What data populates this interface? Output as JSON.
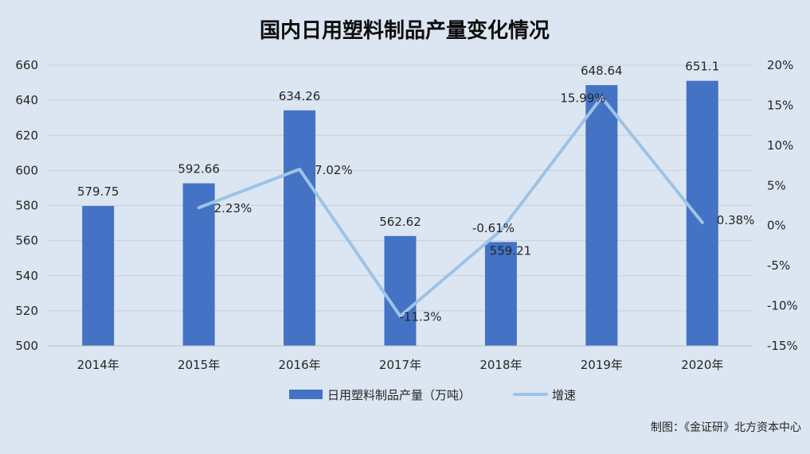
{
  "chart_data": {
    "type": "bar",
    "title": "国内日用塑料制品产量变化情况",
    "categories": [
      "2014年",
      "2015年",
      "2016年",
      "2017年",
      "2018年",
      "2019年",
      "2020年"
    ],
    "series": [
      {
        "name": "日用塑料制品产量（万吨）",
        "type": "bar",
        "axis": "left",
        "values": [
          579.75,
          592.66,
          634.26,
          562.62,
          559.21,
          648.64,
          651.1
        ],
        "labels": [
          "579.75",
          "592.66",
          "634.26",
          "562.62",
          "559.21",
          "648.64",
          "651.1"
        ],
        "color": "#4472c4"
      },
      {
        "name": "增速",
        "type": "line",
        "axis": "right",
        "values": [
          null,
          2.23,
          7.02,
          -11.3,
          -0.61,
          15.99,
          0.38
        ],
        "labels": [
          null,
          "2.23%",
          "7.02%",
          "-11.3%",
          "-0.61%",
          "15.99%",
          "0.38%"
        ],
        "color": "#9dc3e6"
      }
    ],
    "y_left": {
      "ylim": [
        500,
        660
      ],
      "ticks": [
        "500",
        "520",
        "540",
        "560",
        "580",
        "600",
        "620",
        "640",
        "660"
      ],
      "tick_values": [
        500,
        520,
        540,
        560,
        580,
        600,
        620,
        640,
        660
      ]
    },
    "y_right": {
      "ylim": [
        -15,
        20
      ],
      "ticks": [
        "-15%",
        "-10%",
        "-5%",
        "0%",
        "5%",
        "10%",
        "15%",
        "20%"
      ],
      "tick_values": [
        -15,
        -10,
        -5,
        0,
        5,
        10,
        15,
        20
      ]
    },
    "grid": true,
    "legend_placement": "bottom",
    "source": "制图：《金证研》北方资本中心"
  }
}
